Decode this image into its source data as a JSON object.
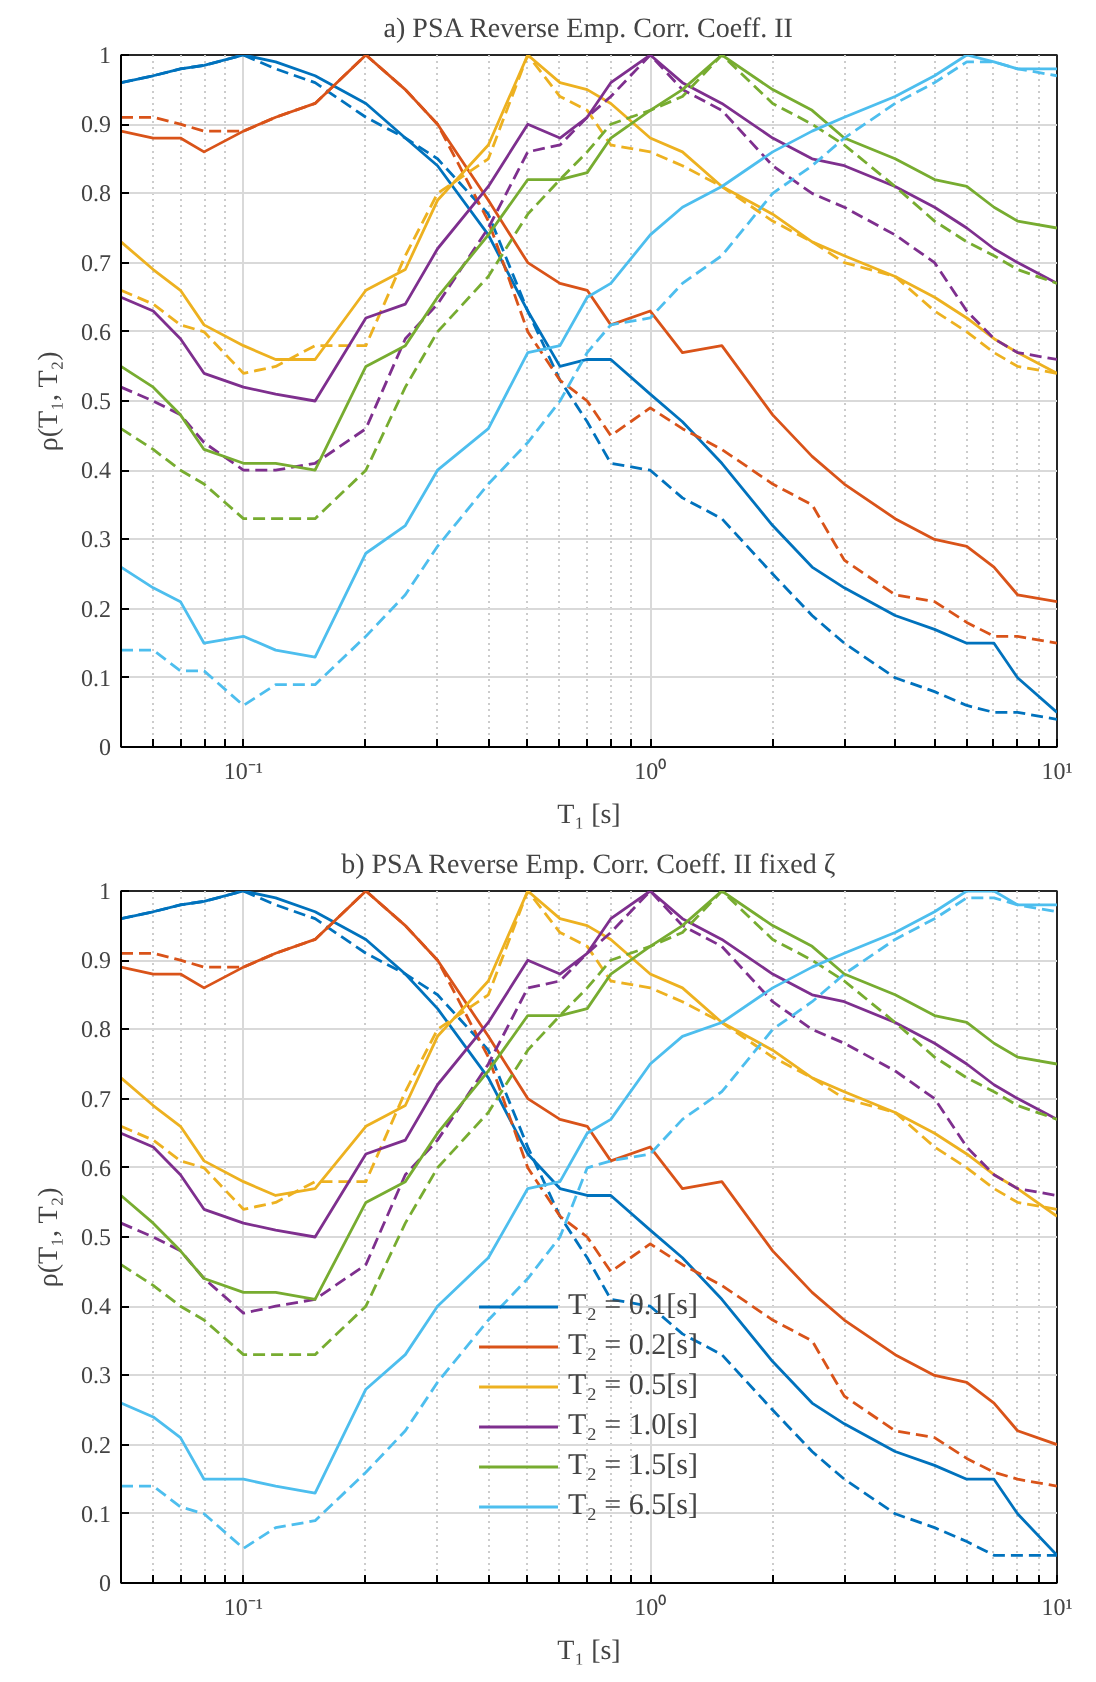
{
  "chart_data": [
    {
      "type": "line",
      "title": "a) PSA Reverse Emp. Corr. Coeff. II",
      "xlabel": "T₁ [s]",
      "ylabel": "ρ(T₁, T₂)",
      "log": "x",
      "grid": true,
      "xlim": [
        0.05,
        10
      ],
      "ylim": [
        0,
        1
      ],
      "xticks": [
        {
          "value": 0.05,
          "label": null
        },
        {
          "value": 0.06,
          "label": null
        },
        {
          "value": 0.07,
          "label": null
        },
        {
          "value": 0.08,
          "label": null
        },
        {
          "value": 0.09,
          "label": null
        },
        {
          "value": 0.1,
          "label": "10⁻¹"
        },
        {
          "value": 0.2,
          "label": null
        },
        {
          "value": 0.3,
          "label": null
        },
        {
          "value": 0.4,
          "label": null
        },
        {
          "value": 0.5,
          "label": null
        },
        {
          "value": 0.6,
          "label": null
        },
        {
          "value": 0.7,
          "label": null
        },
        {
          "value": 0.8,
          "label": null
        },
        {
          "value": 0.9,
          "label": null
        },
        {
          "value": 1,
          "label": "10⁰"
        },
        {
          "value": 2,
          "label": null
        },
        {
          "value": 3,
          "label": null
        },
        {
          "value": 4,
          "label": null
        },
        {
          "value": 5,
          "label": null
        },
        {
          "value": 6,
          "label": null
        },
        {
          "value": 7,
          "label": null
        },
        {
          "value": 8,
          "label": null
        },
        {
          "value": 9,
          "label": null
        },
        {
          "value": 10,
          "label": "10¹"
        }
      ],
      "yticks": [
        0,
        0.1,
        0.2,
        0.3,
        0.4,
        0.5,
        0.6,
        0.7,
        0.8,
        0.9,
        1
      ],
      "x": [
        0.05,
        0.06,
        0.07,
        0.08,
        0.1,
        0.12,
        0.15,
        0.2,
        0.25,
        0.3,
        0.4,
        0.5,
        0.6,
        0.7,
        0.8,
        1,
        1.2,
        1.5,
        2,
        2.5,
        3,
        4,
        5,
        6,
        7,
        8,
        10
      ],
      "series": [
        {
          "color": "#0072bd",
          "line_style": "solid",
          "values": [
            0.96,
            0.97,
            0.98,
            0.985,
            1.0,
            0.99,
            0.97,
            0.93,
            0.88,
            0.84,
            0.74,
            0.63,
            0.55,
            0.56,
            0.56,
            0.51,
            0.47,
            0.41,
            0.32,
            0.26,
            0.23,
            0.19,
            0.17,
            0.15,
            0.15,
            0.1,
            0.05
          ]
        },
        {
          "color": "#0072bd",
          "line_style": "dashed",
          "values": [
            0.96,
            0.97,
            0.98,
            0.985,
            1.0,
            0.98,
            0.96,
            0.91,
            0.88,
            0.85,
            0.77,
            0.63,
            0.53,
            0.47,
            0.41,
            0.4,
            0.36,
            0.33,
            0.25,
            0.19,
            0.15,
            0.1,
            0.08,
            0.06,
            0.05,
            0.05,
            0.04
          ]
        },
        {
          "color": "#d95319",
          "line_style": "solid",
          "values": [
            0.89,
            0.88,
            0.88,
            0.86,
            0.89,
            0.91,
            0.93,
            1.0,
            0.95,
            0.9,
            0.79,
            0.7,
            0.67,
            0.66,
            0.61,
            0.63,
            0.57,
            0.58,
            0.48,
            0.42,
            0.38,
            0.33,
            0.3,
            0.29,
            0.26,
            0.22,
            0.21
          ]
        },
        {
          "color": "#d95319",
          "line_style": "dashed",
          "values": [
            0.91,
            0.91,
            0.9,
            0.89,
            0.89,
            0.91,
            0.93,
            1.0,
            0.95,
            0.9,
            0.76,
            0.6,
            0.53,
            0.5,
            0.45,
            0.49,
            0.46,
            0.43,
            0.38,
            0.35,
            0.27,
            0.22,
            0.21,
            0.18,
            0.16,
            0.16,
            0.15
          ]
        },
        {
          "color": "#edb120",
          "line_style": "solid",
          "values": [
            0.73,
            0.69,
            0.66,
            0.61,
            0.58,
            0.56,
            0.56,
            0.66,
            0.69,
            0.79,
            0.87,
            1.0,
            0.96,
            0.95,
            0.93,
            0.88,
            0.86,
            0.81,
            0.77,
            0.73,
            0.71,
            0.68,
            0.65,
            0.62,
            0.59,
            0.57,
            0.54
          ]
        },
        {
          "color": "#edb120",
          "line_style": "dashed",
          "values": [
            0.66,
            0.64,
            0.61,
            0.6,
            0.54,
            0.55,
            0.58,
            0.58,
            0.71,
            0.8,
            0.85,
            1.0,
            0.94,
            0.92,
            0.87,
            0.86,
            0.84,
            0.81,
            0.76,
            0.73,
            0.7,
            0.68,
            0.63,
            0.6,
            0.57,
            0.55,
            0.54
          ]
        },
        {
          "color": "#7e2f8e",
          "line_style": "solid",
          "values": [
            0.65,
            0.63,
            0.59,
            0.54,
            0.52,
            0.51,
            0.5,
            0.62,
            0.64,
            0.72,
            0.81,
            0.9,
            0.88,
            0.91,
            0.96,
            1.0,
            0.96,
            0.93,
            0.88,
            0.85,
            0.84,
            0.81,
            0.78,
            0.75,
            0.72,
            0.7,
            0.67
          ]
        },
        {
          "color": "#7e2f8e",
          "line_style": "dashed",
          "values": [
            0.52,
            0.5,
            0.48,
            0.44,
            0.4,
            0.4,
            0.41,
            0.46,
            0.59,
            0.64,
            0.75,
            0.86,
            0.87,
            0.91,
            0.94,
            1.0,
            0.95,
            0.92,
            0.84,
            0.8,
            0.78,
            0.74,
            0.7,
            0.63,
            0.59,
            0.57,
            0.56
          ]
        },
        {
          "color": "#77ac30",
          "line_style": "solid",
          "values": [
            0.55,
            0.52,
            0.48,
            0.43,
            0.41,
            0.41,
            0.4,
            0.55,
            0.58,
            0.65,
            0.74,
            0.82,
            0.82,
            0.83,
            0.88,
            0.92,
            0.95,
            1.0,
            0.95,
            0.92,
            0.88,
            0.85,
            0.82,
            0.81,
            0.78,
            0.76,
            0.75
          ]
        },
        {
          "color": "#77ac30",
          "line_style": "dashed",
          "values": [
            0.46,
            0.43,
            0.4,
            0.38,
            0.33,
            0.33,
            0.33,
            0.4,
            0.52,
            0.6,
            0.68,
            0.77,
            0.82,
            0.86,
            0.9,
            0.92,
            0.94,
            1.0,
            0.93,
            0.9,
            0.87,
            0.81,
            0.76,
            0.73,
            0.71,
            0.69,
            0.67
          ]
        },
        {
          "color": "#4dbeee",
          "line_style": "solid",
          "values": [
            0.26,
            0.23,
            0.21,
            0.15,
            0.16,
            0.14,
            0.13,
            0.28,
            0.32,
            0.4,
            0.46,
            0.57,
            0.58,
            0.65,
            0.67,
            0.74,
            0.78,
            0.81,
            0.86,
            0.89,
            0.91,
            0.94,
            0.97,
            1.0,
            0.99,
            0.98,
            0.98
          ]
        },
        {
          "color": "#4dbeee",
          "line_style": "dashed",
          "values": [
            0.14,
            0.14,
            0.11,
            0.11,
            0.06,
            0.09,
            0.09,
            0.16,
            0.22,
            0.29,
            0.38,
            0.44,
            0.5,
            0.57,
            0.61,
            0.62,
            0.67,
            0.71,
            0.8,
            0.84,
            0.88,
            0.93,
            0.96,
            0.99,
            0.99,
            0.98,
            0.97
          ]
        }
      ]
    },
    {
      "type": "line",
      "title": "b) PSA Reverse Emp. Corr. Coeff. II fixed ζ",
      "xlabel": "T₁ [s]",
      "ylabel": "ρ(T₁, T₂)",
      "log": "x",
      "grid": true,
      "legend": "bottom",
      "xlim": [
        0.05,
        10
      ],
      "ylim": [
        0,
        1
      ],
      "xticks": [
        {
          "value": 0.05,
          "label": null
        },
        {
          "value": 0.06,
          "label": null
        },
        {
          "value": 0.07,
          "label": null
        },
        {
          "value": 0.08,
          "label": null
        },
        {
          "value": 0.09,
          "label": null
        },
        {
          "value": 0.1,
          "label": "10⁻¹"
        },
        {
          "value": 0.2,
          "label": null
        },
        {
          "value": 0.3,
          "label": null
        },
        {
          "value": 0.4,
          "label": null
        },
        {
          "value": 0.5,
          "label": null
        },
        {
          "value": 0.6,
          "label": null
        },
        {
          "value": 0.7,
          "label": null
        },
        {
          "value": 0.8,
          "label": null
        },
        {
          "value": 0.9,
          "label": null
        },
        {
          "value": 1,
          "label": "10⁰"
        },
        {
          "value": 2,
          "label": null
        },
        {
          "value": 3,
          "label": null
        },
        {
          "value": 4,
          "label": null
        },
        {
          "value": 5,
          "label": null
        },
        {
          "value": 6,
          "label": null
        },
        {
          "value": 7,
          "label": null
        },
        {
          "value": 8,
          "label": null
        },
        {
          "value": 9,
          "label": null
        },
        {
          "value": 10,
          "label": "10¹"
        }
      ],
      "yticks": [
        0,
        0.1,
        0.2,
        0.3,
        0.4,
        0.5,
        0.6,
        0.7,
        0.8,
        0.9,
        1
      ],
      "x": [
        0.05,
        0.06,
        0.07,
        0.08,
        0.1,
        0.12,
        0.15,
        0.2,
        0.25,
        0.3,
        0.4,
        0.5,
        0.6,
        0.7,
        0.8,
        1,
        1.2,
        1.5,
        2,
        2.5,
        3,
        4,
        5,
        6,
        7,
        8,
        10
      ],
      "series": [
        {
          "name": "T₂ = 0.1[s]",
          "color": "#0072bd",
          "line_style": "solid",
          "values": [
            0.96,
            0.97,
            0.98,
            0.985,
            1.0,
            0.99,
            0.97,
            0.93,
            0.88,
            0.83,
            0.73,
            0.62,
            0.57,
            0.56,
            0.56,
            0.51,
            0.47,
            0.41,
            0.32,
            0.26,
            0.23,
            0.19,
            0.17,
            0.15,
            0.15,
            0.1,
            0.04
          ]
        },
        {
          "color": "#0072bd",
          "line_style": "dashed",
          "values": [
            0.96,
            0.97,
            0.98,
            0.985,
            1.0,
            0.98,
            0.96,
            0.91,
            0.88,
            0.85,
            0.77,
            0.63,
            0.53,
            0.47,
            0.41,
            0.4,
            0.36,
            0.33,
            0.25,
            0.19,
            0.15,
            0.1,
            0.08,
            0.06,
            0.04,
            0.04,
            0.04
          ]
        },
        {
          "name": "T₂ = 0.2[s]",
          "color": "#d95319",
          "line_style": "solid",
          "values": [
            0.89,
            0.88,
            0.88,
            0.86,
            0.89,
            0.91,
            0.93,
            1.0,
            0.95,
            0.9,
            0.79,
            0.7,
            0.67,
            0.66,
            0.61,
            0.63,
            0.57,
            0.58,
            0.48,
            0.42,
            0.38,
            0.33,
            0.3,
            0.29,
            0.26,
            0.22,
            0.2
          ]
        },
        {
          "color": "#d95319",
          "line_style": "dashed",
          "values": [
            0.91,
            0.91,
            0.9,
            0.89,
            0.89,
            0.91,
            0.93,
            1.0,
            0.95,
            0.9,
            0.76,
            0.6,
            0.53,
            0.5,
            0.45,
            0.49,
            0.46,
            0.43,
            0.38,
            0.35,
            0.27,
            0.22,
            0.21,
            0.18,
            0.16,
            0.15,
            0.14
          ]
        },
        {
          "name": "T₂ = 0.5[s]",
          "color": "#edb120",
          "line_style": "solid",
          "values": [
            0.73,
            0.69,
            0.66,
            0.61,
            0.58,
            0.56,
            0.57,
            0.66,
            0.69,
            0.79,
            0.87,
            1.0,
            0.96,
            0.95,
            0.93,
            0.88,
            0.86,
            0.81,
            0.77,
            0.73,
            0.71,
            0.68,
            0.65,
            0.62,
            0.59,
            0.57,
            0.53
          ]
        },
        {
          "color": "#edb120",
          "line_style": "dashed",
          "values": [
            0.66,
            0.64,
            0.61,
            0.6,
            0.54,
            0.55,
            0.58,
            0.58,
            0.71,
            0.8,
            0.85,
            1.0,
            0.94,
            0.92,
            0.87,
            0.86,
            0.84,
            0.81,
            0.76,
            0.73,
            0.7,
            0.68,
            0.63,
            0.6,
            0.57,
            0.55,
            0.54
          ]
        },
        {
          "name": "T₂ = 1.0[s]",
          "color": "#7e2f8e",
          "line_style": "solid",
          "values": [
            0.65,
            0.63,
            0.59,
            0.54,
            0.52,
            0.51,
            0.5,
            0.62,
            0.64,
            0.72,
            0.81,
            0.9,
            0.88,
            0.91,
            0.96,
            1.0,
            0.96,
            0.93,
            0.88,
            0.85,
            0.84,
            0.81,
            0.78,
            0.75,
            0.72,
            0.7,
            0.67
          ]
        },
        {
          "color": "#7e2f8e",
          "line_style": "dashed",
          "values": [
            0.52,
            0.5,
            0.48,
            0.44,
            0.39,
            0.4,
            0.41,
            0.46,
            0.59,
            0.64,
            0.75,
            0.86,
            0.87,
            0.91,
            0.94,
            1.0,
            0.95,
            0.92,
            0.84,
            0.8,
            0.78,
            0.74,
            0.7,
            0.63,
            0.59,
            0.57,
            0.56
          ]
        },
        {
          "name": "T₂ = 1.5[s]",
          "color": "#77ac30",
          "line_style": "solid",
          "values": [
            0.56,
            0.52,
            0.48,
            0.44,
            0.42,
            0.42,
            0.41,
            0.55,
            0.58,
            0.65,
            0.74,
            0.82,
            0.82,
            0.83,
            0.88,
            0.92,
            0.95,
            1.0,
            0.95,
            0.92,
            0.88,
            0.85,
            0.82,
            0.81,
            0.78,
            0.76,
            0.75
          ]
        },
        {
          "color": "#77ac30",
          "line_style": "dashed",
          "values": [
            0.46,
            0.43,
            0.4,
            0.38,
            0.33,
            0.33,
            0.33,
            0.4,
            0.52,
            0.6,
            0.68,
            0.77,
            0.82,
            0.86,
            0.9,
            0.92,
            0.94,
            1.0,
            0.93,
            0.9,
            0.87,
            0.81,
            0.76,
            0.73,
            0.71,
            0.69,
            0.67
          ]
        },
        {
          "name": "T₂ = 6.5[s]",
          "color": "#4dbeee",
          "line_style": "solid",
          "values": [
            0.26,
            0.24,
            0.21,
            0.15,
            0.15,
            0.14,
            0.13,
            0.28,
            0.33,
            0.4,
            0.47,
            0.57,
            0.58,
            0.65,
            0.67,
            0.75,
            0.79,
            0.81,
            0.86,
            0.89,
            0.91,
            0.94,
            0.97,
            1.0,
            1.0,
            0.98,
            0.98
          ]
        },
        {
          "color": "#4dbeee",
          "line_style": "dashed",
          "values": [
            0.14,
            0.14,
            0.11,
            0.1,
            0.05,
            0.08,
            0.09,
            0.16,
            0.22,
            0.29,
            0.38,
            0.44,
            0.5,
            0.6,
            0.61,
            0.62,
            0.67,
            0.71,
            0.8,
            0.84,
            0.88,
            0.93,
            0.96,
            0.99,
            0.99,
            0.98,
            0.97
          ]
        }
      ]
    }
  ]
}
